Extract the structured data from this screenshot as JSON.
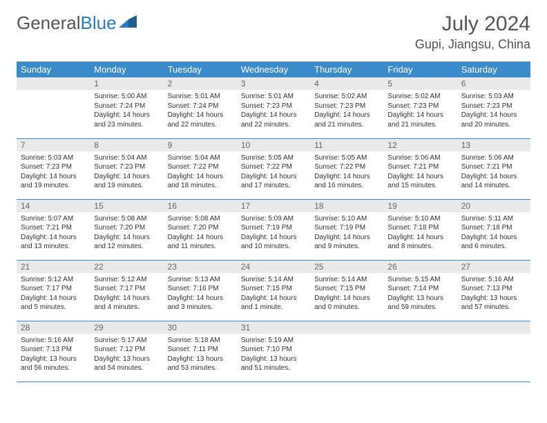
{
  "brand": {
    "part1": "General",
    "part2": "Blue"
  },
  "title": "July 2024",
  "location": "Gupi, Jiangsu, China",
  "colors": {
    "header_bg": "#3a8bc9",
    "header_text": "#ffffff",
    "daynum_bg": "#e9e9e9",
    "text": "#333333",
    "brand_gray": "#555555",
    "brand_blue": "#2b7bbf",
    "row_border": "#3a8bc9"
  },
  "weekdays": [
    "Sunday",
    "Monday",
    "Tuesday",
    "Wednesday",
    "Thursday",
    "Friday",
    "Saturday"
  ],
  "layout": {
    "first_weekday_index": 1,
    "days_in_month": 31,
    "rows": 5
  },
  "days": [
    {
      "n": 1,
      "sunrise": "5:00 AM",
      "sunset": "7:24 PM",
      "daylight": "14 hours and 23 minutes."
    },
    {
      "n": 2,
      "sunrise": "5:01 AM",
      "sunset": "7:24 PM",
      "daylight": "14 hours and 22 minutes."
    },
    {
      "n": 3,
      "sunrise": "5:01 AM",
      "sunset": "7:23 PM",
      "daylight": "14 hours and 22 minutes."
    },
    {
      "n": 4,
      "sunrise": "5:02 AM",
      "sunset": "7:23 PM",
      "daylight": "14 hours and 21 minutes."
    },
    {
      "n": 5,
      "sunrise": "5:02 AM",
      "sunset": "7:23 PM",
      "daylight": "14 hours and 21 minutes."
    },
    {
      "n": 6,
      "sunrise": "5:03 AM",
      "sunset": "7:23 PM",
      "daylight": "14 hours and 20 minutes."
    },
    {
      "n": 7,
      "sunrise": "5:03 AM",
      "sunset": "7:23 PM",
      "daylight": "14 hours and 19 minutes."
    },
    {
      "n": 8,
      "sunrise": "5:04 AM",
      "sunset": "7:23 PM",
      "daylight": "14 hours and 19 minutes."
    },
    {
      "n": 9,
      "sunrise": "5:04 AM",
      "sunset": "7:22 PM",
      "daylight": "14 hours and 18 minutes."
    },
    {
      "n": 10,
      "sunrise": "5:05 AM",
      "sunset": "7:22 PM",
      "daylight": "14 hours and 17 minutes."
    },
    {
      "n": 11,
      "sunrise": "5:05 AM",
      "sunset": "7:22 PM",
      "daylight": "14 hours and 16 minutes."
    },
    {
      "n": 12,
      "sunrise": "5:06 AM",
      "sunset": "7:21 PM",
      "daylight": "14 hours and 15 minutes."
    },
    {
      "n": 13,
      "sunrise": "5:06 AM",
      "sunset": "7:21 PM",
      "daylight": "14 hours and 14 minutes."
    },
    {
      "n": 14,
      "sunrise": "5:07 AM",
      "sunset": "7:21 PM",
      "daylight": "14 hours and 13 minutes."
    },
    {
      "n": 15,
      "sunrise": "5:08 AM",
      "sunset": "7:20 PM",
      "daylight": "14 hours and 12 minutes."
    },
    {
      "n": 16,
      "sunrise": "5:08 AM",
      "sunset": "7:20 PM",
      "daylight": "14 hours and 11 minutes."
    },
    {
      "n": 17,
      "sunrise": "5:09 AM",
      "sunset": "7:19 PM",
      "daylight": "14 hours and 10 minutes."
    },
    {
      "n": 18,
      "sunrise": "5:10 AM",
      "sunset": "7:19 PM",
      "daylight": "14 hours and 9 minutes."
    },
    {
      "n": 19,
      "sunrise": "5:10 AM",
      "sunset": "7:18 PM",
      "daylight": "14 hours and 8 minutes."
    },
    {
      "n": 20,
      "sunrise": "5:11 AM",
      "sunset": "7:18 PM",
      "daylight": "14 hours and 6 minutes."
    },
    {
      "n": 21,
      "sunrise": "5:12 AM",
      "sunset": "7:17 PM",
      "daylight": "14 hours and 5 minutes."
    },
    {
      "n": 22,
      "sunrise": "5:12 AM",
      "sunset": "7:17 PM",
      "daylight": "14 hours and 4 minutes."
    },
    {
      "n": 23,
      "sunrise": "5:13 AM",
      "sunset": "7:16 PM",
      "daylight": "14 hours and 3 minutes."
    },
    {
      "n": 24,
      "sunrise": "5:14 AM",
      "sunset": "7:15 PM",
      "daylight": "14 hours and 1 minute."
    },
    {
      "n": 25,
      "sunrise": "5:14 AM",
      "sunset": "7:15 PM",
      "daylight": "14 hours and 0 minutes."
    },
    {
      "n": 26,
      "sunrise": "5:15 AM",
      "sunset": "7:14 PM",
      "daylight": "13 hours and 59 minutes."
    },
    {
      "n": 27,
      "sunrise": "5:16 AM",
      "sunset": "7:13 PM",
      "daylight": "13 hours and 57 minutes."
    },
    {
      "n": 28,
      "sunrise": "5:16 AM",
      "sunset": "7:13 PM",
      "daylight": "13 hours and 56 minutes."
    },
    {
      "n": 29,
      "sunrise": "5:17 AM",
      "sunset": "7:12 PM",
      "daylight": "13 hours and 54 minutes."
    },
    {
      "n": 30,
      "sunrise": "5:18 AM",
      "sunset": "7:11 PM",
      "daylight": "13 hours and 53 minutes."
    },
    {
      "n": 31,
      "sunrise": "5:19 AM",
      "sunset": "7:10 PM",
      "daylight": "13 hours and 51 minutes."
    }
  ],
  "labels": {
    "sunrise": "Sunrise:",
    "sunset": "Sunset:",
    "daylight": "Daylight:"
  }
}
